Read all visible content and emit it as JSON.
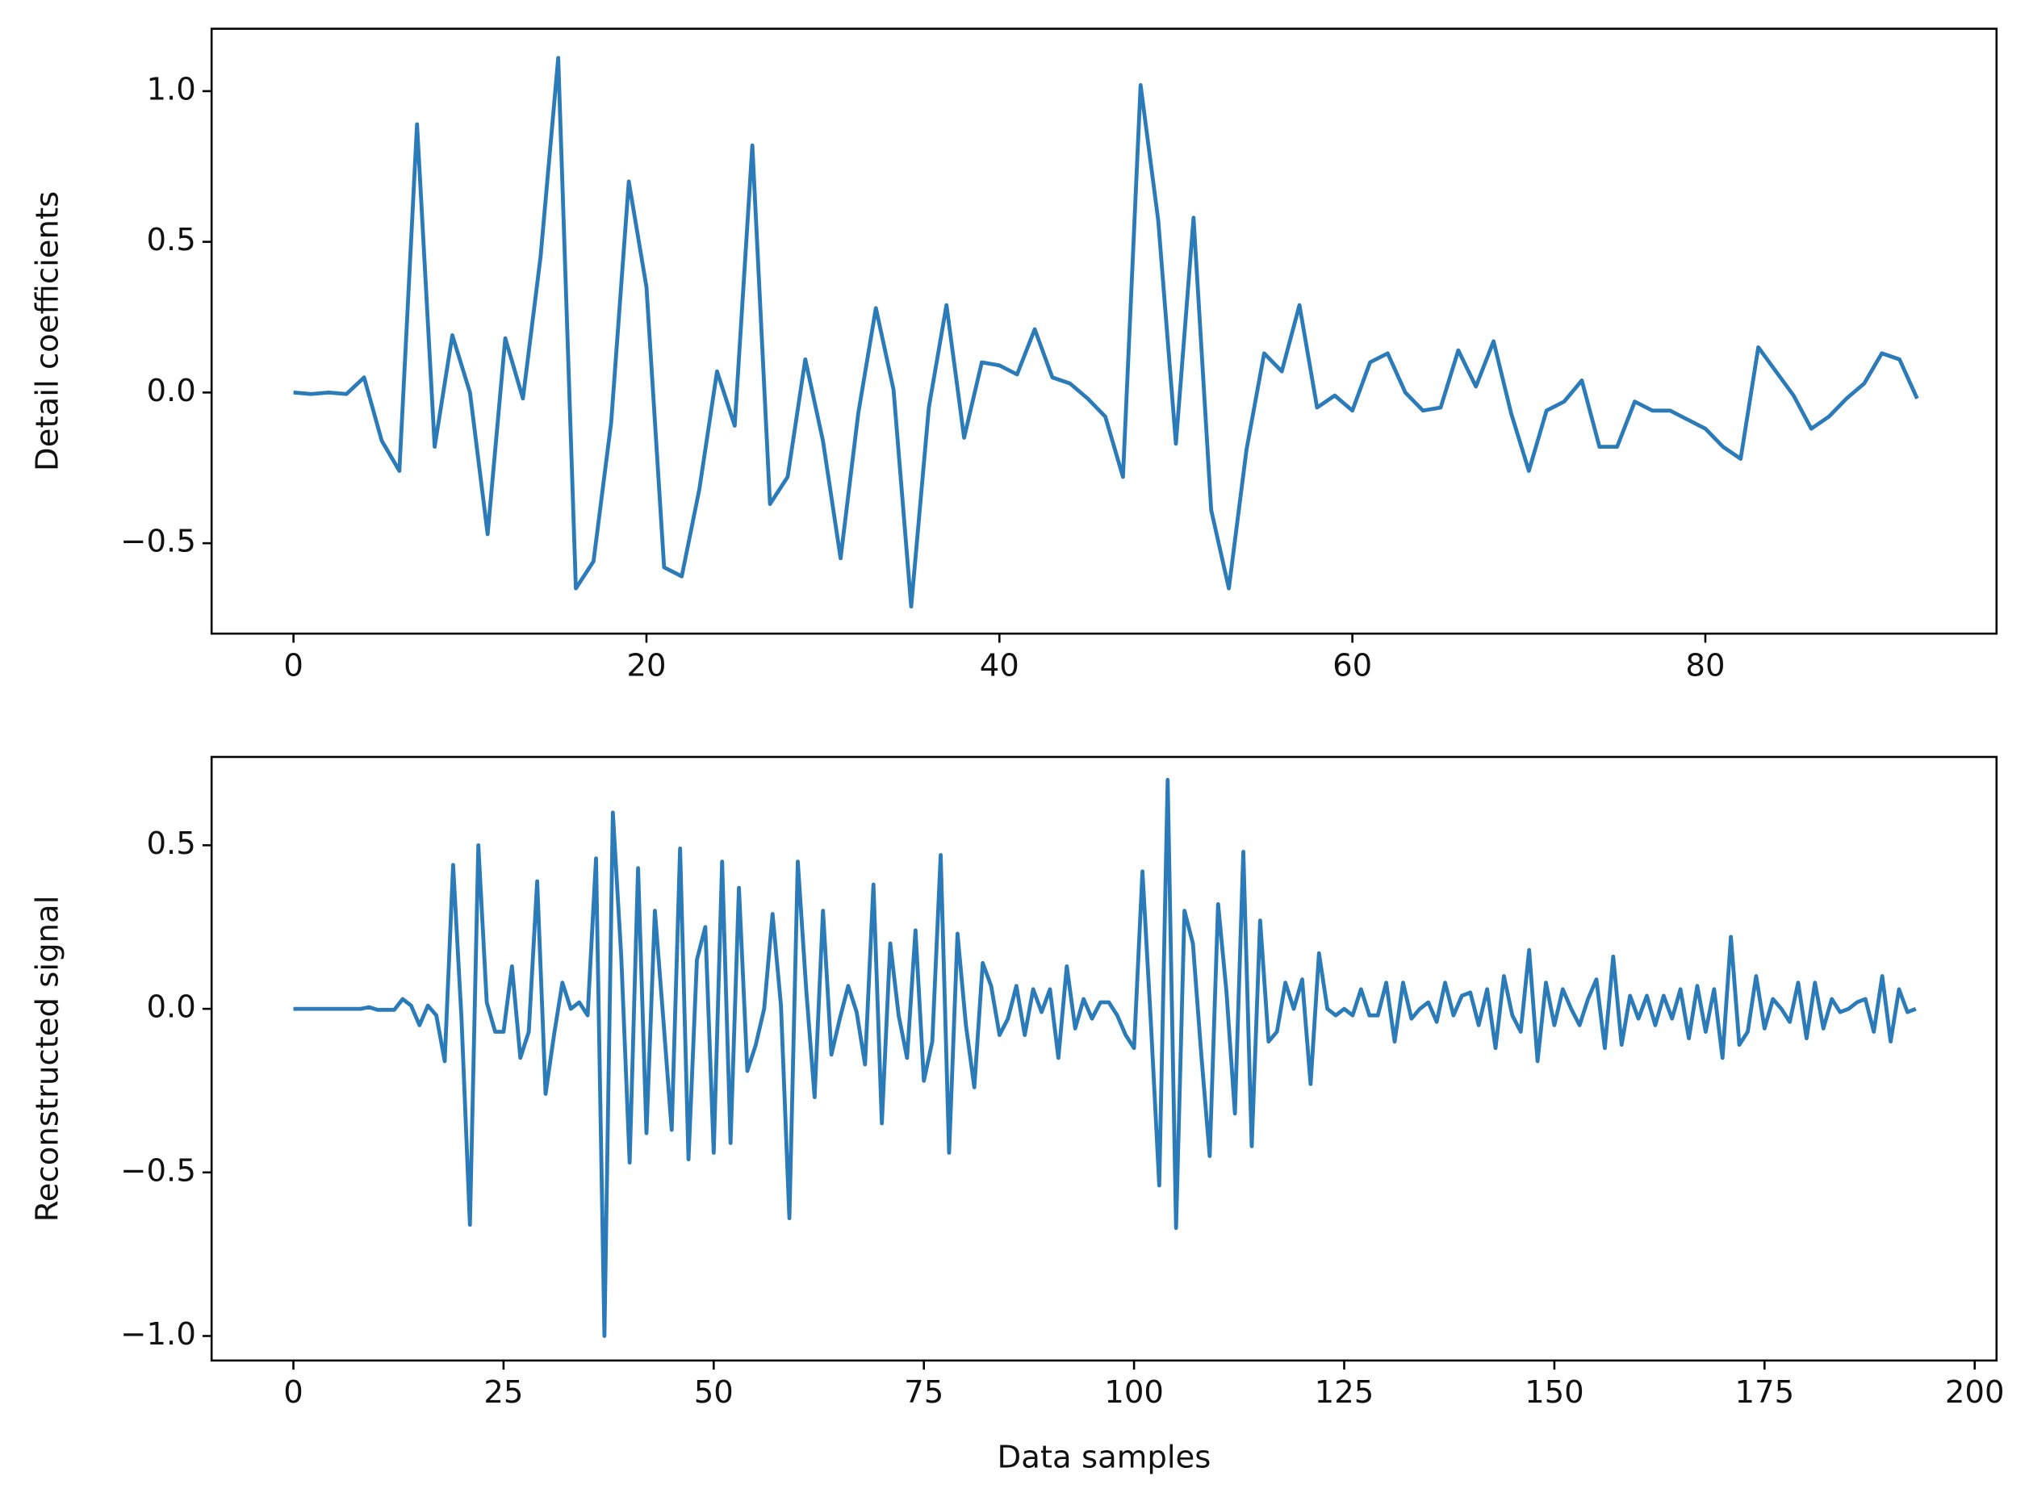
{
  "chart_data": [
    {
      "type": "line",
      "ylabel": "Detail coefficients",
      "color": "#2b7bb9",
      "x": [
        0,
        1,
        2,
        3,
        4,
        5,
        6,
        7,
        8,
        9,
        10,
        11,
        12,
        13,
        14,
        15,
        16,
        17,
        18,
        19,
        20,
        21,
        22,
        23,
        24,
        25,
        26,
        27,
        28,
        29,
        30,
        31,
        32,
        33,
        34,
        35,
        36,
        37,
        38,
        39,
        40,
        41,
        42,
        43,
        44,
        45,
        46,
        47,
        48,
        49,
        50,
        51,
        52,
        53,
        54,
        55,
        56,
        57,
        58,
        59,
        60,
        61,
        62,
        63,
        64,
        65,
        66,
        67,
        68,
        69,
        70,
        71,
        72,
        73,
        74,
        75,
        76,
        77,
        78,
        79,
        80,
        81,
        82,
        83,
        84,
        85,
        86,
        87,
        88,
        89,
        90,
        91,
        92
      ],
      "values": [
        0.0,
        -0.005,
        0.0,
        -0.005,
        0.05,
        -0.16,
        -0.26,
        0.89,
        -0.18,
        0.19,
        0.0,
        -0.47,
        0.18,
        -0.02,
        0.45,
        1.11,
        -0.65,
        -0.56,
        -0.1,
        0.7,
        0.35,
        -0.58,
        -0.61,
        -0.32,
        0.07,
        -0.11,
        0.82,
        -0.37,
        -0.28,
        0.11,
        -0.16,
        -0.55,
        -0.07,
        0.28,
        0.01,
        -0.71,
        -0.05,
        0.29,
        -0.15,
        0.1,
        0.09,
        0.06,
        0.21,
        0.05,
        0.03,
        -0.02,
        -0.08,
        -0.28,
        1.02,
        0.57,
        -0.17,
        0.58,
        -0.39,
        -0.65,
        -0.19,
        0.13,
        0.07,
        0.29,
        -0.05,
        -0.01,
        -0.06,
        0.1,
        0.13,
        0.0,
        -0.06,
        -0.05,
        0.14,
        0.02,
        0.17,
        -0.07,
        -0.26,
        -0.06,
        -0.03,
        0.04,
        -0.18,
        -0.18,
        -0.03,
        -0.06,
        -0.06,
        -0.09,
        -0.12,
        -0.18,
        -0.22,
        0.15,
        0.07,
        -0.01,
        -0.12,
        -0.08,
        -0.02,
        0.03,
        0.13,
        0.11,
        -0.02
      ],
      "xlim": [
        -4.64,
        96.5
      ],
      "ylim": [
        -0.8,
        1.207
      ],
      "xticks": [
        0,
        20,
        40,
        60,
        80
      ],
      "yticks": [
        {
          "value": -0.5,
          "label": "−0.5"
        },
        {
          "value": 0,
          "label": "0.0"
        },
        0.5,
        {
          "value": 1,
          "label": "1.0"
        }
      ]
    },
    {
      "type": "line",
      "ylabel": "Reconstructed signal",
      "xlabel": "Data samples",
      "color": "#2b7bb9",
      "x": [
        0,
        1,
        2,
        3,
        4,
        5,
        6,
        7,
        8,
        9,
        10,
        11,
        12,
        13,
        14,
        15,
        16,
        17,
        18,
        19,
        20,
        21,
        22,
        23,
        24,
        25,
        26,
        27,
        28,
        29,
        30,
        31,
        32,
        33,
        34,
        35,
        36,
        37,
        38,
        39,
        40,
        41,
        42,
        43,
        44,
        45,
        46,
        47,
        48,
        49,
        50,
        51,
        52,
        53,
        54,
        55,
        56,
        57,
        58,
        59,
        60,
        61,
        62,
        63,
        64,
        65,
        66,
        67,
        68,
        69,
        70,
        71,
        72,
        73,
        74,
        75,
        76,
        77,
        78,
        79,
        80,
        81,
        82,
        83,
        84,
        85,
        86,
        87,
        88,
        89,
        90,
        91,
        92,
        93,
        94,
        95,
        96,
        97,
        98,
        99,
        100,
        101,
        102,
        103,
        104,
        105,
        106,
        107,
        108,
        109,
        110,
        111,
        112,
        113,
        114,
        115,
        116,
        117,
        118,
        119,
        120,
        121,
        122,
        123,
        124,
        125,
        126,
        127,
        128,
        129,
        130,
        131,
        132,
        133,
        134,
        135,
        136,
        137,
        138,
        139,
        140,
        141,
        142,
        143,
        144,
        145,
        146,
        147,
        148,
        149,
        150,
        151,
        152,
        153,
        154,
        155,
        156,
        157,
        158,
        159,
        160,
        161,
        162,
        163,
        164,
        165,
        166,
        167,
        168,
        169,
        170,
        171,
        172,
        173,
        174,
        175,
        176,
        177,
        178,
        179,
        180,
        181,
        182,
        183,
        184,
        185,
        186,
        187,
        188,
        189,
        190,
        191,
        192,
        193
      ],
      "values": [
        0,
        0,
        0,
        0,
        0,
        0,
        0,
        0,
        0,
        0.005,
        -0.003,
        -0.003,
        -0.003,
        0.03,
        0.01,
        -0.05,
        0.01,
        -0.02,
        -0.16,
        0.44,
        -0.03,
        -0.66,
        0.5,
        0.02,
        -0.07,
        -0.07,
        0.13,
        -0.15,
        -0.07,
        0.39,
        -0.26,
        -0.08,
        0.08,
        0.0,
        0.02,
        -0.02,
        0.46,
        -1.0,
        0.6,
        0.16,
        -0.47,
        0.43,
        -0.38,
        0.3,
        -0.03,
        -0.37,
        0.49,
        -0.46,
        0.15,
        0.25,
        -0.44,
        0.45,
        -0.41,
        0.37,
        -0.19,
        -0.11,
        0.0,
        0.29,
        0.01,
        -0.64,
        0.45,
        0.06,
        -0.27,
        0.3,
        -0.14,
        -0.03,
        0.07,
        -0.01,
        -0.17,
        0.38,
        -0.35,
        0.2,
        -0.02,
        -0.15,
        0.24,
        -0.22,
        -0.1,
        0.47,
        -0.44,
        0.23,
        -0.05,
        -0.24,
        0.14,
        0.07,
        -0.08,
        -0.03,
        0.07,
        -0.08,
        0.06,
        -0.01,
        0.06,
        -0.15,
        0.13,
        -0.06,
        0.03,
        -0.03,
        0.02,
        0.02,
        -0.02,
        -0.08,
        -0.12,
        0.42,
        -0.04,
        -0.54,
        0.7,
        -0.67,
        0.3,
        0.2,
        -0.14,
        -0.45,
        0.32,
        0.05,
        -0.32,
        0.48,
        -0.42,
        0.27,
        -0.1,
        -0.07,
        0.08,
        0.0,
        0.09,
        -0.23,
        0.17,
        0.0,
        -0.02,
        0.0,
        -0.02,
        0.06,
        -0.02,
        -0.02,
        0.08,
        -0.1,
        0.08,
        -0.03,
        0.0,
        0.02,
        -0.04,
        0.08,
        -0.02,
        0.04,
        0.05,
        -0.05,
        0.06,
        -0.12,
        0.1,
        -0.02,
        -0.07,
        0.18,
        -0.16,
        0.08,
        -0.05,
        0.06,
        0.0,
        -0.05,
        0.03,
        0.09,
        -0.12,
        0.16,
        -0.11,
        0.04,
        -0.03,
        0.04,
        -0.05,
        0.04,
        -0.03,
        0.06,
        -0.09,
        0.07,
        -0.07,
        0.06,
        -0.15,
        0.22,
        -0.11,
        -0.07,
        0.1,
        -0.06,
        0.03,
        0.0,
        -0.04,
        0.08,
        -0.09,
        0.08,
        -0.06,
        0.03,
        -0.01,
        0.0,
        0.02,
        0.03,
        -0.07,
        0.1,
        -0.1,
        0.06,
        -0.01,
        0.0
      ],
      "xlim": [
        -9.73,
        202.6
      ],
      "ylim": [
        -1.075,
        0.77
      ],
      "xticks": [
        0,
        25,
        50,
        75,
        100,
        125,
        150,
        175,
        200
      ],
      "yticks": [
        {
          "value": -1,
          "label": "−1.0"
        },
        {
          "value": -0.5,
          "label": "−0.5"
        },
        {
          "value": 0,
          "label": "0.0"
        },
        0.5
      ]
    }
  ]
}
